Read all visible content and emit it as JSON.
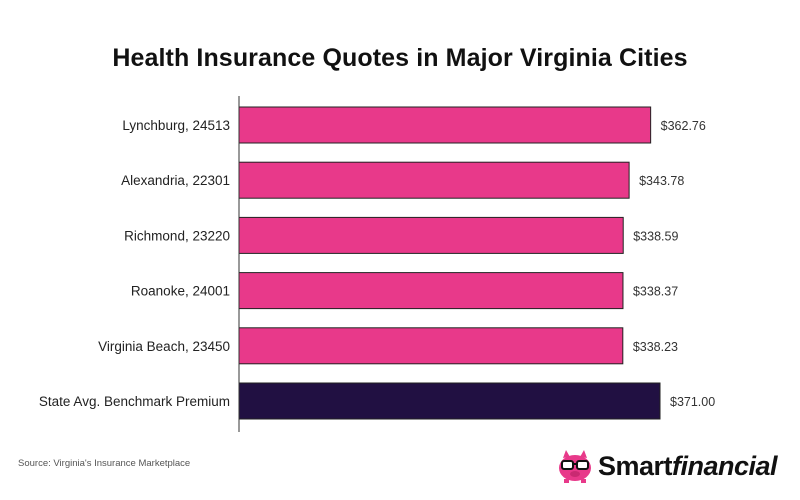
{
  "title": "Health Insurance Quotes in Major Virginia Cities",
  "source": "Source: Virginia's Insurance Marketplace",
  "brand": {
    "part1": "Smart",
    "part2": "financial"
  },
  "colors": {
    "city_bar": "#E8398A",
    "benchmark_bar": "#211042",
    "bar_stroke": "#222222"
  },
  "chart_data": {
    "type": "bar",
    "orientation": "horizontal",
    "title": "Health Insurance Quotes in Major Virginia Cities",
    "categories": [
      "Lynchburg, 24513",
      "Alexandria, 22301",
      "Richmond, 23220",
      "Roanoke, 24001",
      "Virginia Beach, 23450",
      "State Avg. Benchmark Premium"
    ],
    "values": [
      362.76,
      343.78,
      338.59,
      338.37,
      338.23,
      371.0
    ],
    "value_labels": [
      "$362.76",
      "$343.78",
      "$338.59",
      "$338.37",
      "$338.23",
      "$371.00"
    ],
    "bar_colors": [
      "#E8398A",
      "#E8398A",
      "#E8398A",
      "#E8398A",
      "#E8398A",
      "#211042"
    ],
    "xlim": [
      0,
      371.0
    ],
    "xlabel": "",
    "ylabel": "",
    "grid": false,
    "legend": "none"
  }
}
